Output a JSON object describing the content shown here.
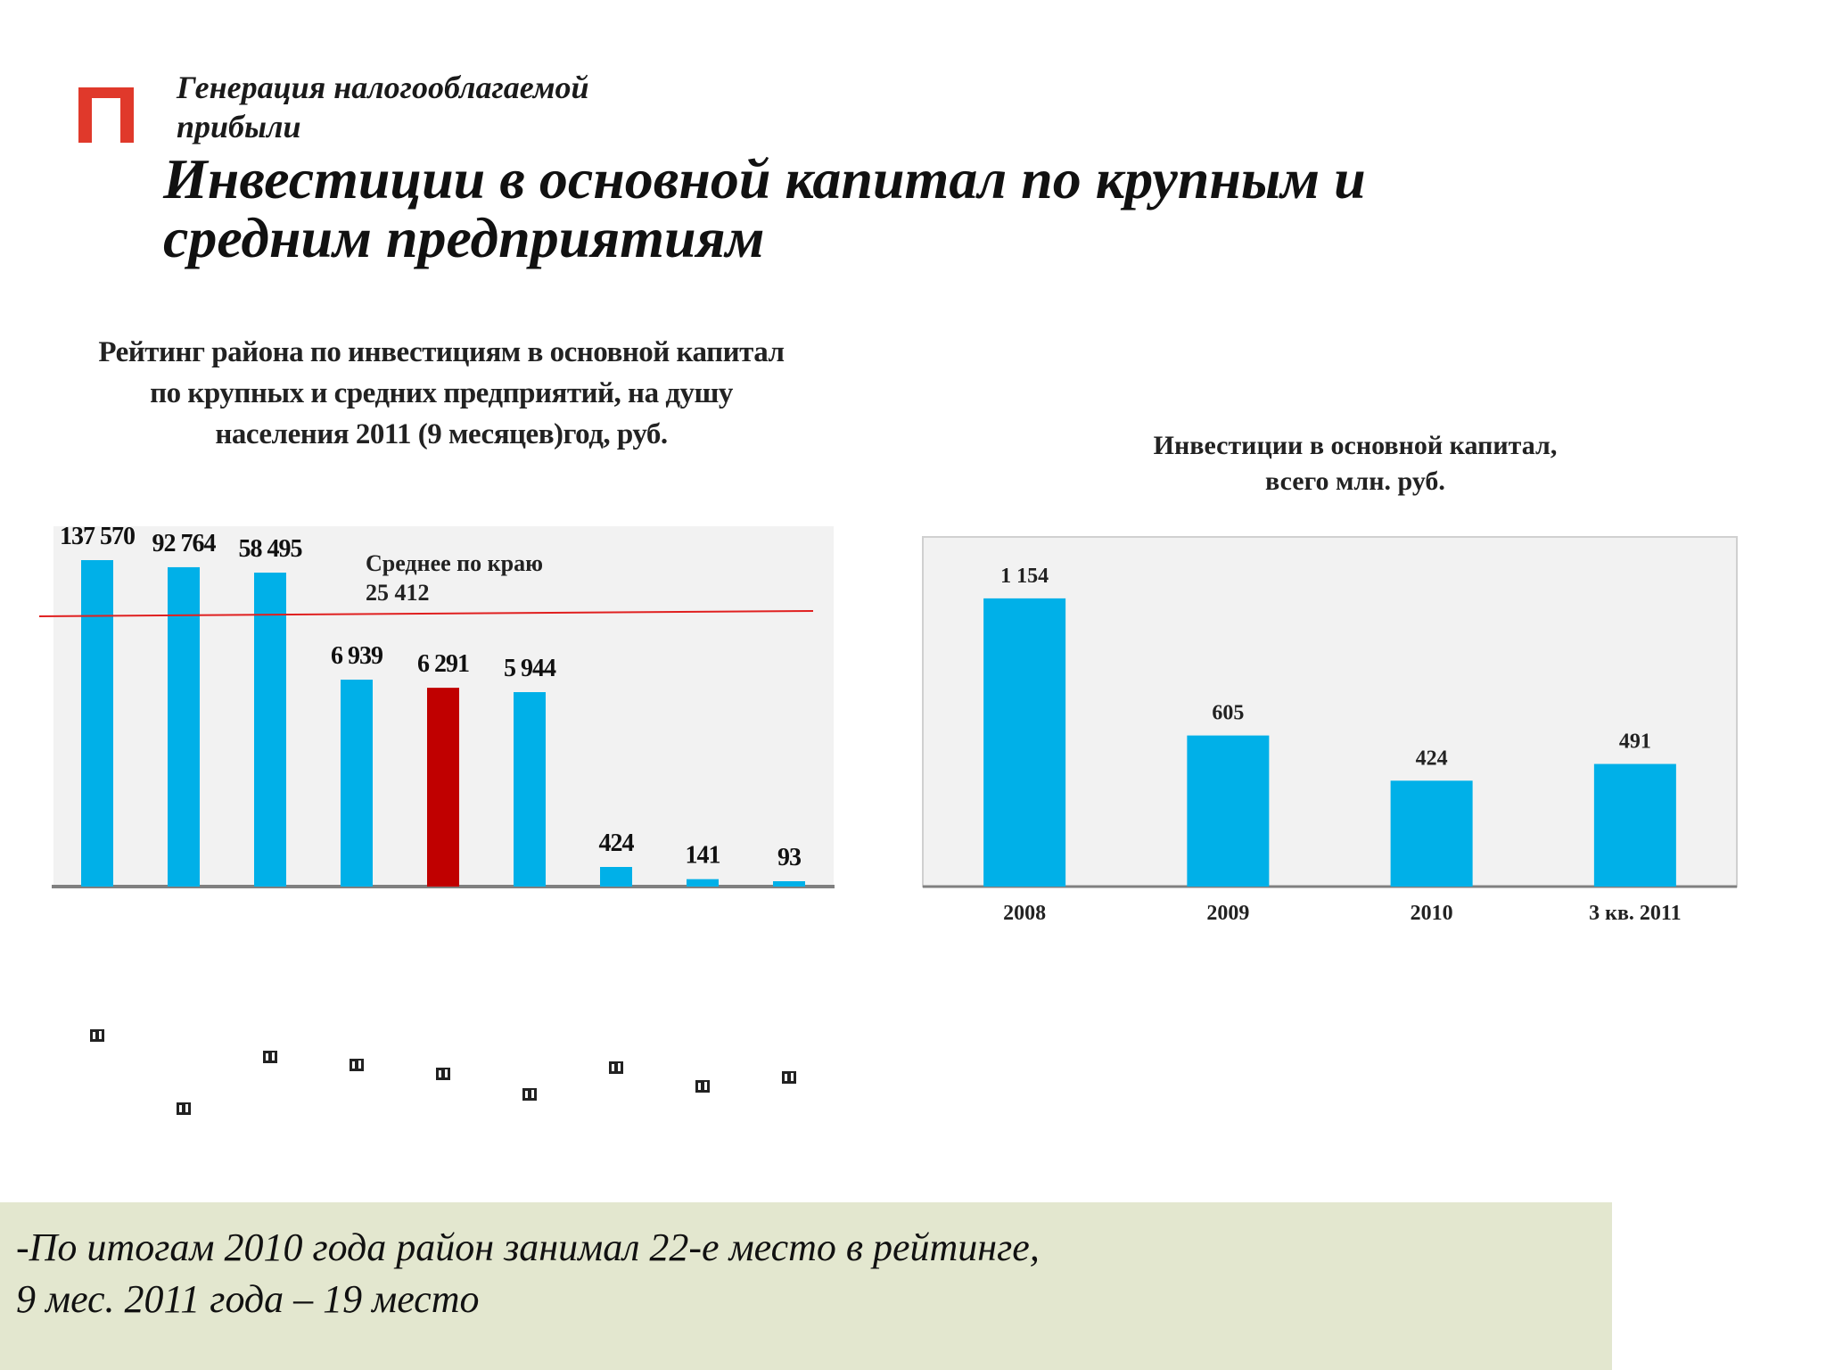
{
  "header": {
    "subtitle_line1": "Генерация налогооблагаемой",
    "subtitle_line2": "прибыли",
    "title_line1": "Инвестиции в основной капитал по крупным и",
    "title_line2": "средним предприятиям",
    "logo_color": "#e0392b"
  },
  "colors": {
    "bar": "#00b0e8",
    "highlight": "#c00000",
    "avg_line": "#e02020",
    "axis": "#808080",
    "note_bg": "#e3e7cf"
  },
  "chart_data": [
    {
      "type": "bar",
      "title_lines": [
        "Рейтинг района по инвестициям в основной капитал",
        "по крупных и средних предприятий, на душу",
        "населения 2011 (9 месяцев)год, руб."
      ],
      "categories": [
        "",
        "",
        "",
        "",
        "",
        "",
        "",
        "",
        ""
      ],
      "values": [
        137570,
        92764,
        58495,
        6939,
        6291,
        5944,
        424,
        141,
        93
      ],
      "value_labels": [
        "137 570",
        "92 764",
        "58 495",
        "6 939",
        "6 291",
        "5 944",
        "424",
        "141",
        "93"
      ],
      "highlight_index": 4,
      "reference_line": {
        "label_line1": "Среднее по краю",
        "label_line2": "25 412",
        "value": 25412
      },
      "grid": false,
      "legend": "none"
    },
    {
      "type": "bar",
      "title_lines": [
        "Инвестиции в основной капитал,",
        "всего млн. руб."
      ],
      "categories": [
        "2008",
        "2009",
        "2010",
        "3 кв. 2011"
      ],
      "values": [
        1154,
        605,
        424,
        491
      ],
      "value_labels": [
        "1 154",
        "605",
        "424",
        "491"
      ],
      "ylim": [
        0,
        1400
      ],
      "grid": false,
      "legend": "none"
    }
  ],
  "note": {
    "line1": "-По итогам 2010 года район занимал 22-е место в рейтинге,",
    "line2": "9 мес. 2011 года – 19 место"
  }
}
